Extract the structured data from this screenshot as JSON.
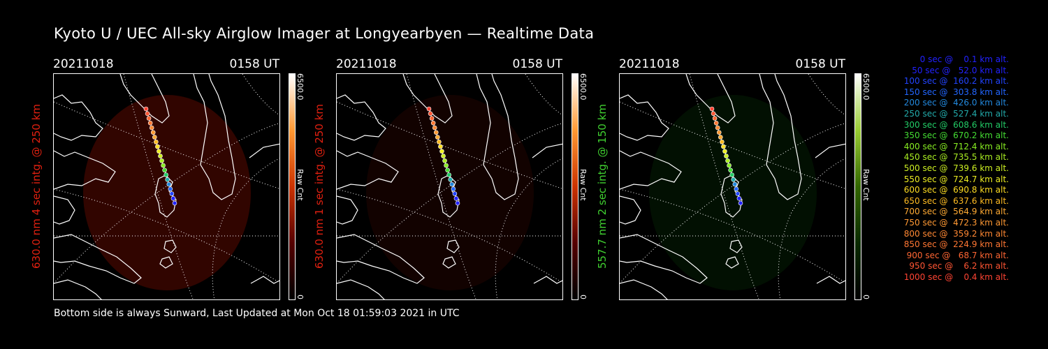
{
  "title": "Kyoto U / UEC All-sky Airglow Imager at Longyearbyen — Realtime Data",
  "footer": "Bottom side is always Sunward, Last Updated at Mon Oct 18 01:59:03 2021 in UTC",
  "panels": [
    {
      "date": "20211018",
      "time": "0158 UT",
      "side_label": "630.0 nm 4 sec intg. @ 250 km",
      "label_color": "#e02010",
      "cbar_max": "6500.0",
      "cbar_unit": "Raw Cnt",
      "cbar_min": "0",
      "glow_color": "#3a0600",
      "glow_opacity": 0.85,
      "cbar_gradient": [
        "#ffffff",
        "#ff9933",
        "#cc3300",
        "#550000",
        "#000000"
      ]
    },
    {
      "date": "20211018",
      "time": "0158 UT",
      "side_label": "630.0 nm 1 sec intg. @ 250 km",
      "label_color": "#e02010",
      "cbar_max": "6500.0",
      "cbar_unit": "Raw Cnt",
      "cbar_min": "0",
      "glow_color": "#1a0300",
      "glow_opacity": 0.7,
      "cbar_gradient": [
        "#ffffff",
        "#ff9933",
        "#cc3300",
        "#550000",
        "#000000"
      ]
    },
    {
      "date": "20211018",
      "time": "0158 UT",
      "side_label": "557.7 nm 2 sec intg. @ 150 km",
      "label_color": "#40d030",
      "cbar_max": "6500.0",
      "cbar_unit": "Raw Cnt",
      "cbar_min": "0",
      "glow_color": "#031a03",
      "glow_opacity": 0.6,
      "cbar_gradient": [
        "#ffffff",
        "#99cc33",
        "#336600",
        "#0a2a00",
        "#000000"
      ]
    }
  ],
  "legend": [
    {
      "text": "   0 sec @    0.1 km alt.",
      "color": "#2222ff"
    },
    {
      "text": "  50 sec @   52.0 km alt.",
      "color": "#2222ff"
    },
    {
      "text": " 100 sec @  160.2 km alt.",
      "color": "#2244ff"
    },
    {
      "text": " 150 sec @  303.8 km alt.",
      "color": "#2266ff"
    },
    {
      "text": " 200 sec @  426.0 km alt.",
      "color": "#2288dd"
    },
    {
      "text": " 250 sec @  527.4 km alt.",
      "color": "#22aaaa"
    },
    {
      "text": " 300 sec @  608.6 km alt.",
      "color": "#22cc66"
    },
    {
      "text": " 350 sec @  670.2 km alt.",
      "color": "#44dd33"
    },
    {
      "text": " 400 sec @  712.4 km alt.",
      "color": "#88ee22"
    },
    {
      "text": " 450 sec @  735.5 km alt.",
      "color": "#aaee22"
    },
    {
      "text": " 500 sec @  739.6 km alt.",
      "color": "#ccee22"
    },
    {
      "text": " 550 sec @  724.7 km alt.",
      "color": "#eeee22"
    },
    {
      "text": " 600 sec @  690.8 km alt.",
      "color": "#ffdd22"
    },
    {
      "text": " 650 sec @  637.6 km alt.",
      "color": "#ffbb22"
    },
    {
      "text": " 700 sec @  564.9 km alt.",
      "color": "#ffaa33"
    },
    {
      "text": " 750 sec @  472.3 km alt.",
      "color": "#ff9933"
    },
    {
      "text": " 800 sec @  359.2 km alt.",
      "color": "#ff8833"
    },
    {
      "text": " 850 sec @  224.9 km alt.",
      "color": "#ff7733"
    },
    {
      "text": " 900 sec @   68.7 km alt.",
      "color": "#ff6633"
    },
    {
      "text": " 950 sec @    6.2 km alt.",
      "color": "#ff5533"
    },
    {
      "text": "1000 sec @    0.4 km alt.",
      "color": "#ff4433"
    }
  ]
}
